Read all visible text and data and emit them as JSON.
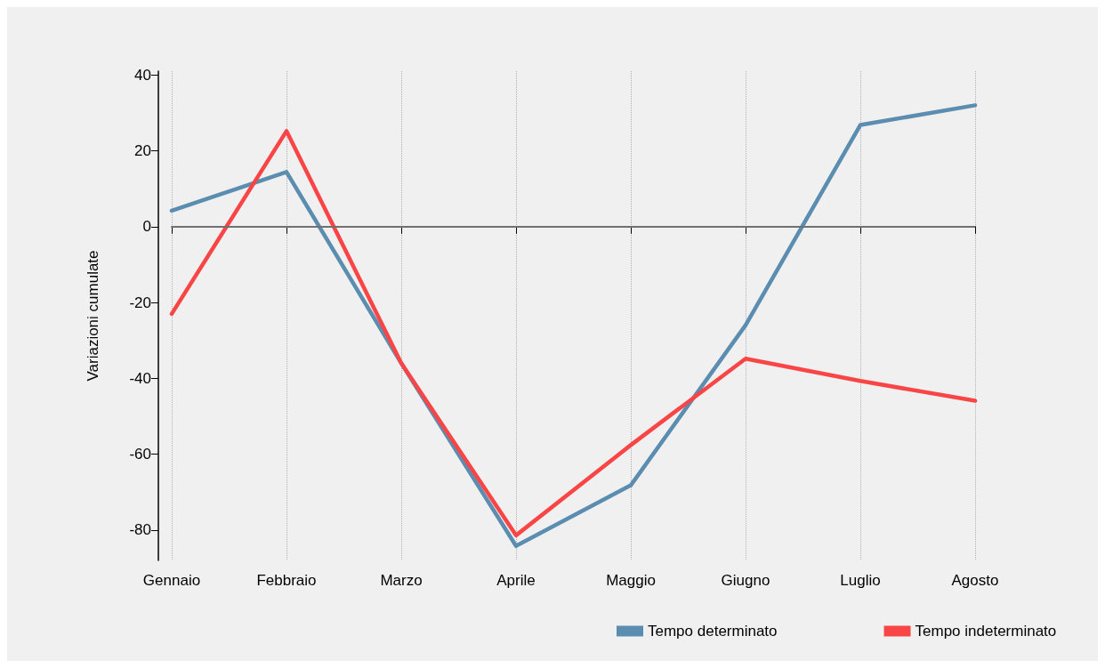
{
  "chart_data": {
    "type": "line",
    "ylabel": "Variazioni cumulate",
    "categories": [
      "Gennaio",
      "Febbraio",
      "Marzo",
      "Aprile",
      "Maggio",
      "Giugno",
      "Luglio",
      "Agosto"
    ],
    "series": [
      {
        "name": "Tempo determinato",
        "color": "#5b8db0",
        "values": [
          4.2,
          14.4,
          -36,
          -84.2,
          -68.2,
          -26,
          26.8,
          32
        ]
      },
      {
        "name": "Tempo indeterminato",
        "color": "#f94545",
        "values": [
          -23,
          25.2,
          -36,
          -81.4,
          -57.6,
          -34.8,
          -40.7,
          -45.9
        ]
      }
    ],
    "ylim": [
      -88,
      41
    ],
    "yticks": [
      -80,
      -60,
      -40,
      -20,
      0,
      20,
      40
    ],
    "ref_lines": [
      {
        "axis": "y",
        "value": 0,
        "color": "#707070"
      }
    ],
    "grid": "x",
    "legend": "bottom",
    "marker": "none",
    "line_style": "solid"
  }
}
